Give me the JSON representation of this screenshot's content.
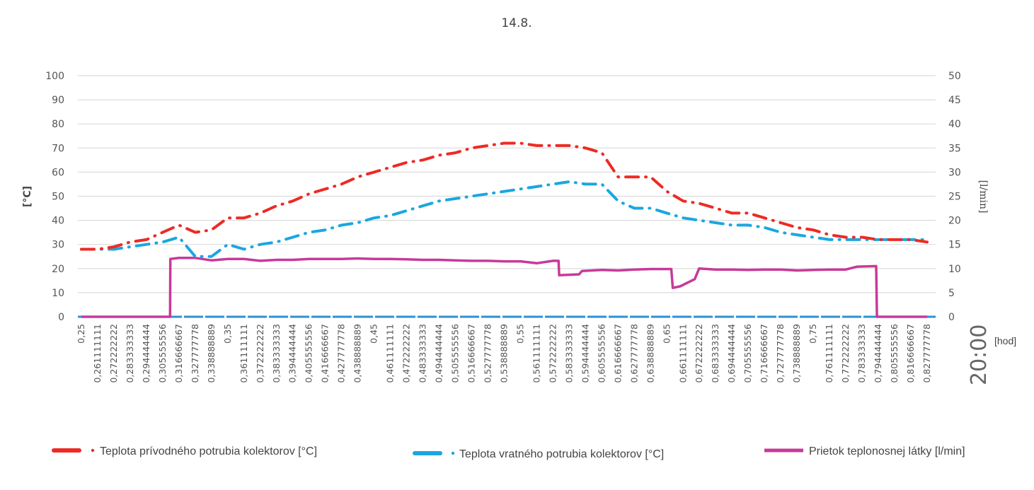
{
  "chart_data": {
    "type": "line",
    "title": "14.8.",
    "ylabel_left": "[°C]",
    "ylabel_right": "[l/min]",
    "xlabel": "[hod]",
    "x_annotation": "20:00",
    "ylim_left": [
      0,
      100
    ],
    "ylim_right": [
      0,
      50
    ],
    "yticks_left": [
      "0",
      "10",
      "20",
      "30",
      "40",
      "50",
      "60",
      "70",
      "80",
      "90",
      "100"
    ],
    "yticks_right": [
      "0",
      "5",
      "10",
      "15",
      "20",
      "25",
      "30",
      "35",
      "40",
      "45",
      "50"
    ],
    "grid": true,
    "legend_position": "bottom",
    "categories": [
      "0,25",
      "0,261111111",
      "0,272222222",
      "0,283333333",
      "0,294444444",
      "0,305555556",
      "0,316666667",
      "0,327777778",
      "0,338888889",
      "0,35",
      "0,361111111",
      "0,372222222",
      "0,383333333",
      "0,394444444",
      "0,405555556",
      "0,416666667",
      "0,427777778",
      "0,438888889",
      "0,45",
      "0,461111111",
      "0,472222222",
      "0,483333333",
      "0,494444444",
      "0,505555556",
      "0,516666667",
      "0,527777778",
      "0,538888889",
      "0,55",
      "0,561111111",
      "0,572222222",
      "0,583333333",
      "0,594444444",
      "0,605555556",
      "0,616666667",
      "0,627777778",
      "0,638888889",
      "0,65",
      "0,661111111",
      "0,672222222",
      "0,683333333",
      "0,694444444",
      "0,705555556",
      "0,716666667",
      "0,727777778",
      "0,738888889",
      "0,75",
      "0,761111111",
      "0,772222222",
      "0,783333333",
      "0,794444444",
      "0,805555556",
      "0,816666667",
      "0,827777778"
    ],
    "series": [
      {
        "name": "Teplota prívodného potrubia  kolektorov [°C]",
        "axis": "left",
        "color": "#ee2a24",
        "style": "dash-dot",
        "values": [
          28,
          28,
          29,
          31,
          32,
          35,
          38,
          35,
          36,
          41,
          41,
          43,
          46,
          48,
          51,
          53,
          55,
          58,
          60,
          62,
          64,
          65,
          67,
          68,
          70,
          71,
          72,
          72,
          71,
          71,
          71,
          70,
          68,
          58,
          58,
          58,
          52,
          48,
          47,
          45,
          43,
          43,
          41,
          39,
          37,
          36,
          34,
          33,
          33,
          32,
          32,
          32,
          31
        ]
      },
      {
        "name": "Teplota vratného potrubia  kolektorov [°C]",
        "axis": "left",
        "color": "#1aa7e0",
        "style": "dash-dot",
        "values": [
          28,
          28,
          28,
          29,
          30,
          31,
          33,
          25,
          25,
          30,
          28,
          30,
          31,
          33,
          35,
          36,
          38,
          39,
          41,
          42,
          44,
          46,
          48,
          49,
          50,
          51,
          52,
          53,
          54,
          55,
          56,
          55,
          55,
          48,
          45,
          45,
          43,
          41,
          40,
          39,
          38,
          38,
          37,
          35,
          34,
          33,
          32,
          32,
          32,
          32,
          32,
          32,
          32
        ]
      },
      {
        "name": "Prietok teplonosnej látky [l/min]",
        "axis": "right",
        "color": "#c8399a",
        "style": "solid",
        "points": [
          [
            0.25,
            0
          ],
          [
            0.3106,
            0
          ],
          [
            0.3108,
            12
          ],
          [
            0.3167,
            12.2
          ],
          [
            0.3278,
            12.2
          ],
          [
            0.3389,
            11.7
          ],
          [
            0.35,
            12
          ],
          [
            0.3611,
            12
          ],
          [
            0.3722,
            11.6
          ],
          [
            0.3833,
            11.8
          ],
          [
            0.3944,
            11.8
          ],
          [
            0.4056,
            12
          ],
          [
            0.4167,
            12
          ],
          [
            0.4278,
            12
          ],
          [
            0.4389,
            12.1
          ],
          [
            0.45,
            12
          ],
          [
            0.4611,
            12
          ],
          [
            0.4722,
            11.9
          ],
          [
            0.4833,
            11.8
          ],
          [
            0.4944,
            11.8
          ],
          [
            0.5056,
            11.7
          ],
          [
            0.5167,
            11.6
          ],
          [
            0.5278,
            11.6
          ],
          [
            0.5389,
            11.5
          ],
          [
            0.55,
            11.5
          ],
          [
            0.5611,
            11.1
          ],
          [
            0.5722,
            11.6
          ],
          [
            0.576,
            11.6
          ],
          [
            0.5764,
            8.6
          ],
          [
            0.59,
            8.8
          ],
          [
            0.592,
            9.5
          ],
          [
            0.6056,
            9.7
          ],
          [
            0.6167,
            9.6
          ],
          [
            0.6278,
            9.8
          ],
          [
            0.6389,
            9.9
          ],
          [
            0.653,
            9.9
          ],
          [
            0.654,
            6
          ],
          [
            0.659,
            6.3
          ],
          [
            0.669,
            7.8
          ],
          [
            0.672,
            10
          ],
          [
            0.6833,
            9.8
          ],
          [
            0.6944,
            9.8
          ],
          [
            0.7056,
            9.7
          ],
          [
            0.7167,
            9.8
          ],
          [
            0.7278,
            9.8
          ],
          [
            0.7389,
            9.6
          ],
          [
            0.75,
            9.7
          ],
          [
            0.7611,
            9.8
          ],
          [
            0.7722,
            9.8
          ],
          [
            0.78,
            10.4
          ],
          [
            0.793,
            10.5
          ],
          [
            0.7935,
            0
          ],
          [
            0.8278,
            0
          ]
        ]
      }
    ],
    "baseline_color": "#2e8fd6"
  }
}
